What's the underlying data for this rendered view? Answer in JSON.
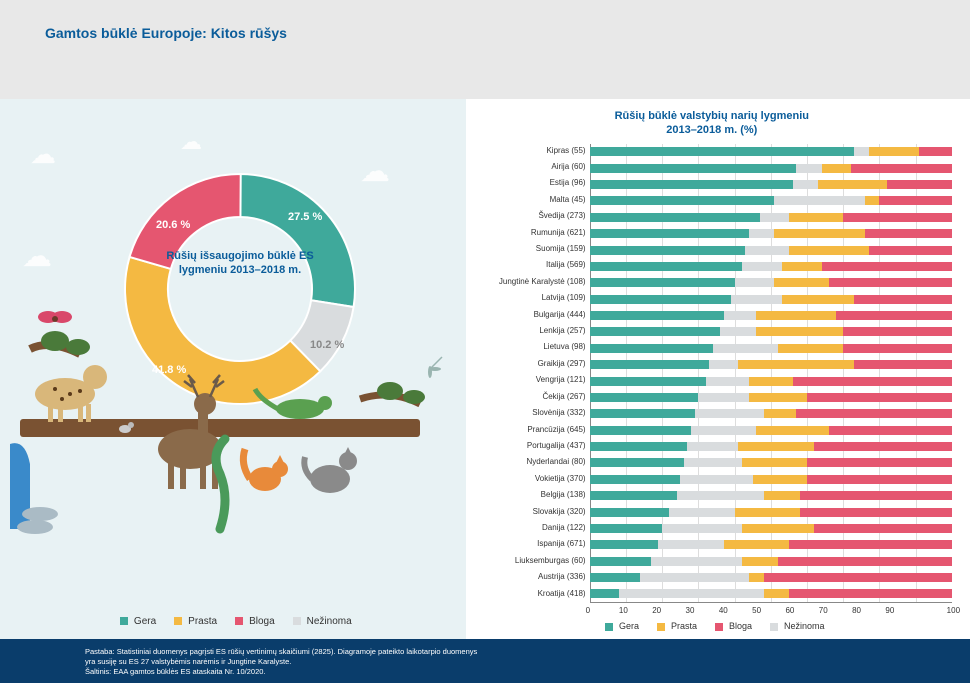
{
  "header": {
    "title": "Gamtos būklė Europoje: Kitos rūšys"
  },
  "colors": {
    "good": "#3fa99b",
    "poor": "#f4b942",
    "bad": "#e55670",
    "unknown": "#d9dcde",
    "title": "#0a5c9a",
    "bg_main": "#e8f2f4",
    "footer_bg": "#0a3d6b"
  },
  "legend": {
    "items": [
      {
        "label": "Gera",
        "key": "good"
      },
      {
        "label": "Prasta",
        "key": "poor"
      },
      {
        "label": "Bloga",
        "key": "bad"
      },
      {
        "label": "Nežinoma",
        "key": "unknown"
      }
    ]
  },
  "donut": {
    "center_label": "Rūšių išsaugojimo būklė ES lygmeniu 2013–2018 m.",
    "slices": [
      {
        "key": "good",
        "value": 27.5,
        "label": "27.5 %"
      },
      {
        "key": "unknown",
        "value": 10.2,
        "label": "10.2 %"
      },
      {
        "key": "poor",
        "value": 41.8,
        "label": "41.8 %"
      },
      {
        "key": "bad",
        "value": 20.6,
        "label": "20.6 %"
      }
    ]
  },
  "bar_chart": {
    "title_l1": "Rūšių būklė valstybių narių lygmeniu",
    "title_l2": "2013–2018 m. (%)",
    "x_ticks": [
      "0",
      "10",
      "20",
      "30",
      "40",
      "50",
      "60",
      "70",
      "80",
      "90",
      "100"
    ],
    "rows": [
      {
        "label": "Kipras (55)",
        "v": [
          73,
          14,
          9,
          4
        ]
      },
      {
        "label": "Airija (60)",
        "v": [
          57,
          8,
          28,
          7
        ]
      },
      {
        "label": "Estija (96)",
        "v": [
          56,
          19,
          18,
          7
        ]
      },
      {
        "label": "Malta (45)",
        "v": [
          51,
          4,
          20,
          25
        ]
      },
      {
        "label": "Švedija (273)",
        "v": [
          47,
          15,
          30,
          8
        ]
      },
      {
        "label": "Rumunija (621)",
        "v": [
          44,
          25,
          24,
          7
        ]
      },
      {
        "label": "Suomija (159)",
        "v": [
          43,
          22,
          23,
          12
        ]
      },
      {
        "label": "Italija (569)",
        "v": [
          42,
          11,
          36,
          11
        ]
      },
      {
        "label": "Jungtinė Karalystė (108)",
        "v": [
          40,
          15,
          34,
          11
        ]
      },
      {
        "label": "Latvija (109)",
        "v": [
          39,
          20,
          27,
          14
        ]
      },
      {
        "label": "Bulgarija (444)",
        "v": [
          37,
          22,
          32,
          9
        ]
      },
      {
        "label": "Lenkija (257)",
        "v": [
          36,
          24,
          30,
          10
        ]
      },
      {
        "label": "Lietuva (98)",
        "v": [
          34,
          18,
          30,
          18
        ]
      },
      {
        "label": "Graikija (297)",
        "v": [
          33,
          32,
          27,
          8
        ]
      },
      {
        "label": "Vengrija (121)",
        "v": [
          32,
          12,
          44,
          12
        ]
      },
      {
        "label": "Čekija (267)",
        "v": [
          30,
          16,
          40,
          14
        ]
      },
      {
        "label": "Slovėnija (332)",
        "v": [
          29,
          9,
          43,
          19
        ]
      },
      {
        "label": "Prancūzija (645)",
        "v": [
          28,
          20,
          34,
          18
        ]
      },
      {
        "label": "Portugalija (437)",
        "v": [
          27,
          21,
          38,
          14
        ]
      },
      {
        "label": "Nyderlandai (80)",
        "v": [
          26,
          18,
          40,
          16
        ]
      },
      {
        "label": "Vokietija (370)",
        "v": [
          25,
          15,
          40,
          20
        ]
      },
      {
        "label": "Belgija (138)",
        "v": [
          24,
          10,
          42,
          24
        ]
      },
      {
        "label": "Slovakija (320)",
        "v": [
          22,
          18,
          42,
          18
        ]
      },
      {
        "label": "Danija (122)",
        "v": [
          20,
          20,
          38,
          22
        ]
      },
      {
        "label": "Ispanija (671)",
        "v": [
          19,
          18,
          45,
          18
        ]
      },
      {
        "label": "Liuksemburgas (60)",
        "v": [
          17,
          10,
          48,
          25
        ]
      },
      {
        "label": "Austrija (336)",
        "v": [
          14,
          4,
          52,
          30
        ]
      },
      {
        "label": "Kroatija (418)",
        "v": [
          8,
          7,
          45,
          40
        ]
      }
    ]
  },
  "footer": {
    "l1": "Pastaba: Statistiniai duomenys pagrįsti ES rūšių vertinimų skaičiumi (2825). Diagramoje pateikto laikotarpio duomenys",
    "l2": "yra susiję su ES 27 valstybėmis narėmis ir Jungtine Karalyste.",
    "l3": "Šaltinis: EAA gamtos būklės ES ataskaita Nr. 10/2020."
  }
}
